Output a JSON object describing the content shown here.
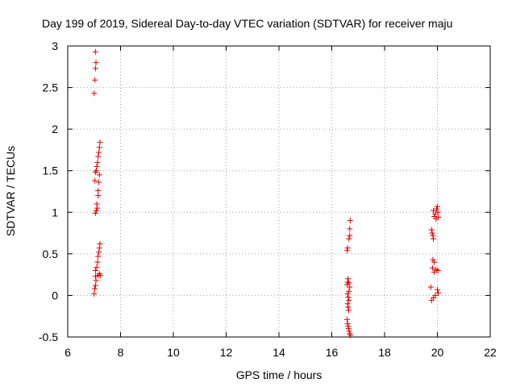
{
  "chart_data": {
    "type": "scatter",
    "title": "Day 199 of 2019, Sidereal Day-to-day VTEC variation (SDTVAR) for receiver maju",
    "xlabel": "GPS time / hours",
    "ylabel": "SDTVAR / TECUs",
    "xlim": [
      6,
      22
    ],
    "ylim": [
      -0.5,
      3
    ],
    "xticks": [
      6,
      8,
      10,
      12,
      14,
      16,
      18,
      20,
      22
    ],
    "yticks": [
      -0.5,
      0,
      0.5,
      1,
      1.5,
      2,
      2.5,
      3
    ],
    "xtick_labels": [
      "6",
      "8",
      "10",
      "12",
      "14",
      "16",
      "18",
      "20",
      "22"
    ],
    "ytick_labels": [
      "-0.5",
      "0",
      "0.5",
      "1",
      "1.5",
      "2",
      "2.5",
      "3"
    ],
    "grid": true,
    "marker": "+",
    "marker_color": "#e00000",
    "series": [
      {
        "name": "SDTVAR",
        "points": [
          [
            7.05,
            2.93
          ],
          [
            7.07,
            2.8
          ],
          [
            7.05,
            2.73
          ],
          [
            7.03,
            2.59
          ],
          [
            7.0,
            2.43
          ],
          [
            7.22,
            1.84
          ],
          [
            7.2,
            1.78
          ],
          [
            7.18,
            1.72
          ],
          [
            7.15,
            1.67
          ],
          [
            7.13,
            1.6
          ],
          [
            7.1,
            1.55
          ],
          [
            7.08,
            1.5
          ],
          [
            7.05,
            1.48
          ],
          [
            7.2,
            1.45
          ],
          [
            7.03,
            1.38
          ],
          [
            7.18,
            1.36
          ],
          [
            7.15,
            1.26
          ],
          [
            7.15,
            1.2
          ],
          [
            7.1,
            1.1
          ],
          [
            7.12,
            1.05
          ],
          [
            7.08,
            1.02
          ],
          [
            7.05,
            0.99
          ],
          [
            7.22,
            0.62
          ],
          [
            7.2,
            0.57
          ],
          [
            7.18,
            0.52
          ],
          [
            7.15,
            0.47
          ],
          [
            7.13,
            0.4
          ],
          [
            7.1,
            0.34
          ],
          [
            7.05,
            0.3
          ],
          [
            7.2,
            0.26
          ],
          [
            7.23,
            0.24
          ],
          [
            7.15,
            0.24
          ],
          [
            7.05,
            0.23
          ],
          [
            7.07,
            0.18
          ],
          [
            7.05,
            0.12
          ],
          [
            7.02,
            0.08
          ],
          [
            7.0,
            0.02
          ],
          [
            16.7,
            0.9
          ],
          [
            16.68,
            0.8
          ],
          [
            16.68,
            0.72
          ],
          [
            16.65,
            0.68
          ],
          [
            16.6,
            0.57
          ],
          [
            16.58,
            0.54
          ],
          [
            16.62,
            0.2
          ],
          [
            16.6,
            0.16
          ],
          [
            16.58,
            0.13
          ],
          [
            16.65,
            0.15
          ],
          [
            16.68,
            0.1
          ],
          [
            16.65,
            0.05
          ],
          [
            16.6,
            0.02
          ],
          [
            16.62,
            -0.02
          ],
          [
            16.65,
            -0.06
          ],
          [
            16.6,
            -0.1
          ],
          [
            16.62,
            -0.14
          ],
          [
            16.64,
            -0.18
          ],
          [
            16.58,
            -0.29
          ],
          [
            16.6,
            -0.34
          ],
          [
            16.62,
            -0.37
          ],
          [
            16.64,
            -0.4
          ],
          [
            16.66,
            -0.43
          ],
          [
            16.68,
            -0.46
          ],
          [
            16.7,
            -0.48
          ],
          [
            20.0,
            1.07
          ],
          [
            19.97,
            1.04
          ],
          [
            19.85,
            1.02
          ],
          [
            20.02,
            1.0
          ],
          [
            19.92,
            0.98
          ],
          [
            19.88,
            0.95
          ],
          [
            20.03,
            0.94
          ],
          [
            19.95,
            0.92
          ],
          [
            19.78,
            0.79
          ],
          [
            19.8,
            0.75
          ],
          [
            19.83,
            0.72
          ],
          [
            19.85,
            0.68
          ],
          [
            19.83,
            0.43
          ],
          [
            19.88,
            0.4
          ],
          [
            19.82,
            0.33
          ],
          [
            19.95,
            0.31
          ],
          [
            20.02,
            0.3
          ],
          [
            19.88,
            0.28
          ],
          [
            19.75,
            0.1
          ],
          [
            20.0,
            0.07
          ],
          [
            20.03,
            0.03
          ],
          [
            19.92,
            0.0
          ],
          [
            19.85,
            -0.03
          ],
          [
            19.78,
            -0.06
          ]
        ]
      }
    ]
  }
}
